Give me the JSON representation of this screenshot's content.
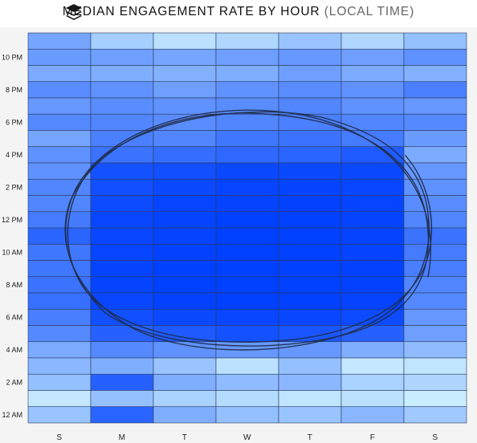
{
  "header": {
    "title": "MEDIAN ENGAGEMENT RATE BY HOUR",
    "subtitle": "(LOCAL TIME)",
    "logo_icon": "stacked-layers-icon"
  },
  "chart_data": {
    "type": "heatmap",
    "title": "MEDIAN ENGAGEMENT RATE BY HOUR (LOCAL TIME)",
    "x_labels": [
      "S",
      "M",
      "T",
      "W",
      "T",
      "F",
      "S"
    ],
    "y_tick_labels": [
      "12 AM",
      "2 AM",
      "4 AM",
      "6 AM",
      "8 AM",
      "10 AM",
      "12 PM",
      "2 PM",
      "4 PM",
      "6 PM",
      "8 PM",
      "10 PM"
    ],
    "rows_from_top_hours": [
      23,
      22,
      21,
      20,
      19,
      18,
      17,
      16,
      15,
      14,
      13,
      12,
      11,
      10,
      9,
      8,
      7,
      6,
      5,
      4,
      3,
      2,
      1,
      0
    ],
    "intensity_scale": [
      0,
      1
    ],
    "color_low": "#d4f7ff",
    "color_high": "#0040ff",
    "values": [
      [
        0.45,
        0.22,
        0.12,
        0.18,
        0.28,
        0.18,
        0.3
      ],
      [
        0.5,
        0.48,
        0.45,
        0.48,
        0.52,
        0.48,
        0.55
      ],
      [
        0.42,
        0.4,
        0.38,
        0.4,
        0.48,
        0.42,
        0.38
      ],
      [
        0.58,
        0.55,
        0.48,
        0.55,
        0.58,
        0.55,
        0.65
      ],
      [
        0.52,
        0.58,
        0.55,
        0.58,
        0.62,
        0.55,
        0.52
      ],
      [
        0.6,
        0.62,
        0.58,
        0.62,
        0.65,
        0.62,
        0.6
      ],
      [
        0.45,
        0.65,
        0.62,
        0.7,
        0.72,
        0.68,
        0.5
      ],
      [
        0.55,
        0.72,
        0.75,
        0.78,
        0.8,
        0.85,
        0.42
      ],
      [
        0.55,
        0.9,
        0.92,
        0.95,
        0.95,
        0.95,
        0.52
      ],
      [
        0.62,
        0.92,
        0.95,
        0.97,
        0.98,
        0.96,
        0.55
      ],
      [
        0.62,
        0.94,
        0.97,
        0.98,
        0.99,
        0.97,
        0.58
      ],
      [
        0.68,
        0.96,
        0.98,
        1.0,
        1.0,
        0.98,
        0.62
      ],
      [
        0.8,
        0.96,
        0.98,
        1.0,
        1.0,
        0.98,
        0.72
      ],
      [
        0.7,
        0.97,
        0.99,
        1.0,
        1.0,
        0.98,
        0.68
      ],
      [
        0.7,
        0.98,
        1.0,
        1.0,
        1.0,
        0.99,
        0.66
      ],
      [
        0.72,
        0.98,
        1.0,
        1.0,
        1.0,
        0.99,
        0.62
      ],
      [
        0.74,
        0.96,
        0.99,
        1.0,
        1.0,
        0.98,
        0.6
      ],
      [
        0.66,
        0.92,
        0.95,
        0.96,
        0.96,
        0.94,
        0.52
      ],
      [
        0.6,
        0.82,
        0.86,
        0.9,
        0.88,
        0.82,
        0.48
      ],
      [
        0.42,
        0.6,
        0.55,
        0.52,
        0.52,
        0.4,
        0.32
      ],
      [
        0.35,
        0.4,
        0.28,
        0.12,
        0.3,
        0.08,
        0.1
      ],
      [
        0.3,
        0.82,
        0.4,
        0.32,
        0.35,
        0.2,
        0.18
      ],
      [
        0.08,
        0.3,
        0.2,
        0.15,
        0.1,
        0.12,
        0.05
      ],
      [
        0.28,
        0.8,
        0.4,
        0.3,
        0.28,
        0.35,
        0.25
      ]
    ],
    "annotation": "hand-drawn dark circle outlining the weekday daytime cluster",
    "grid": true
  }
}
